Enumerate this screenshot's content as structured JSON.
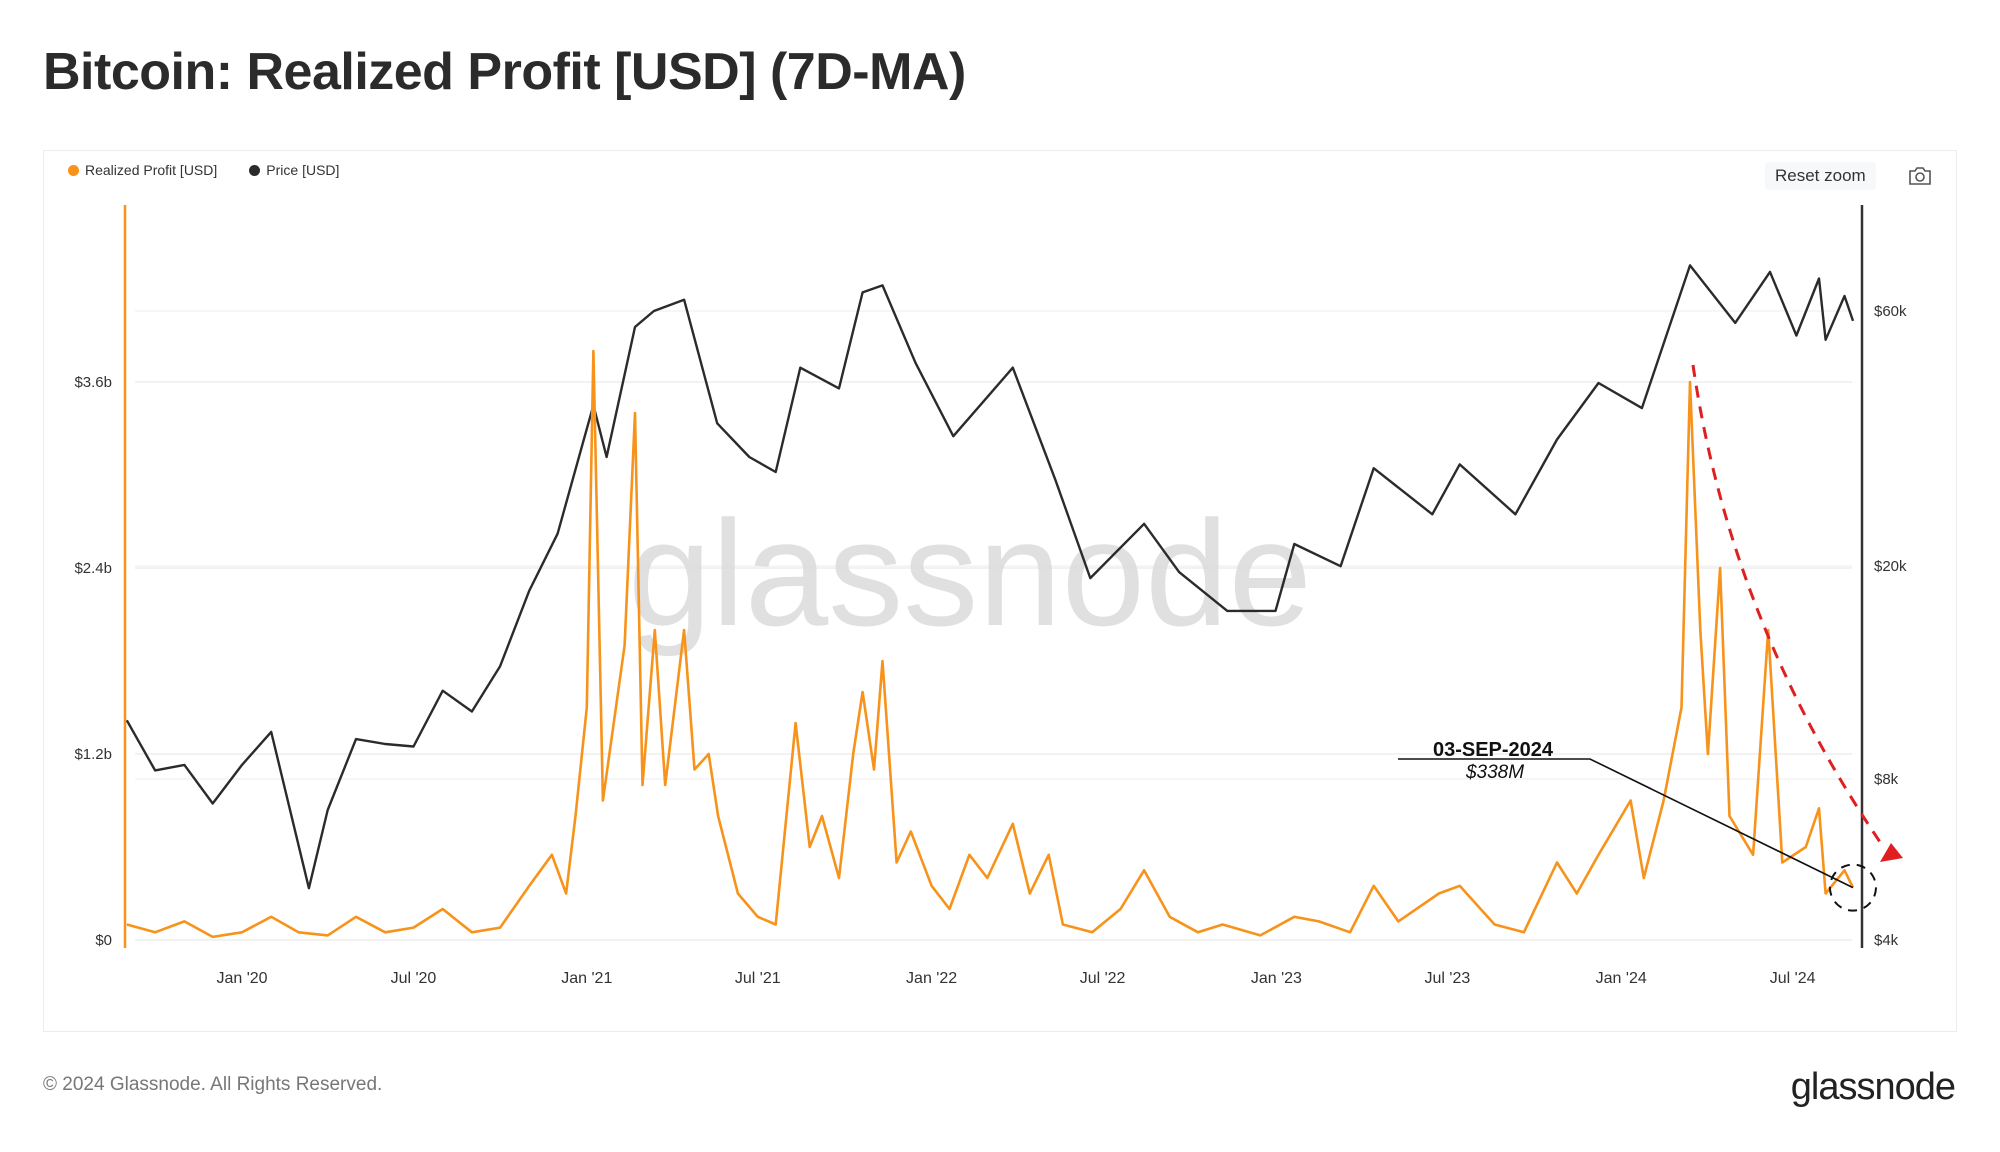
{
  "title": "Bitcoin: Realized Profit [USD] (7D-MA)",
  "legend": [
    {
      "label": "Realized Profit [USD]",
      "color": "#f7931a"
    },
    {
      "label": "Price [USD]",
      "color": "#2b2b2b"
    }
  ],
  "toolbar": {
    "reset_zoom": "Reset zoom",
    "camera_icon": "camera-icon"
  },
  "watermark": "glassnode",
  "footer": {
    "copyright": "© 2024 Glassnode. All Rights Reserved.",
    "logo": "glassnode"
  },
  "chart_data": {
    "type": "line",
    "title": "Bitcoin: Realized Profit [USD] (7D-MA)",
    "x_ticks": [
      "Jan '20",
      "Jul '20",
      "Jan '21",
      "Jul '21",
      "Jan '22",
      "Jul '22",
      "Jan '23",
      "Jul '23",
      "Jan '24",
      "Jul '24"
    ],
    "y_left": {
      "ticks": [
        "$0",
        "$1.2b",
        "$2.4b",
        "$3.6b"
      ],
      "range_billions": [
        0,
        4.8
      ],
      "scale": "linear"
    },
    "y_right": {
      "ticks": [
        "$4k",
        "$8k",
        "$20k",
        "$60k"
      ],
      "range": [
        4000,
        100000
      ],
      "scale": "log"
    },
    "grid": true,
    "legend_position": "top-left",
    "series": [
      {
        "name": "Realized Profit [USD]",
        "axis": "left",
        "unit": "billions USD",
        "color": "#f7931a",
        "points": [
          [
            "2019-09-01",
            0.1
          ],
          [
            "2019-10-01",
            0.05
          ],
          [
            "2019-11-01",
            0.12
          ],
          [
            "2019-12-01",
            0.02
          ],
          [
            "2020-01-01",
            0.05
          ],
          [
            "2020-02-01",
            0.15
          ],
          [
            "2020-03-01",
            0.05
          ],
          [
            "2020-04-01",
            0.03
          ],
          [
            "2020-05-01",
            0.15
          ],
          [
            "2020-06-01",
            0.05
          ],
          [
            "2020-07-01",
            0.08
          ],
          [
            "2020-08-01",
            0.2
          ],
          [
            "2020-09-01",
            0.05
          ],
          [
            "2020-10-01",
            0.08
          ],
          [
            "2020-11-01",
            0.35
          ],
          [
            "2020-11-25",
            0.55
          ],
          [
            "2020-12-10",
            0.3
          ],
          [
            "2020-12-20",
            0.8
          ],
          [
            "2021-01-01",
            1.5
          ],
          [
            "2021-01-08",
            3.8
          ],
          [
            "2021-01-18",
            0.9
          ],
          [
            "2021-02-10",
            1.9
          ],
          [
            "2021-02-21",
            3.4
          ],
          [
            "2021-03-01",
            1.0
          ],
          [
            "2021-03-14",
            2.0
          ],
          [
            "2021-03-25",
            1.0
          ],
          [
            "2021-04-14",
            2.0
          ],
          [
            "2021-04-25",
            1.1
          ],
          [
            "2021-05-10",
            1.2
          ],
          [
            "2021-05-20",
            0.8
          ],
          [
            "2021-06-10",
            0.3
          ],
          [
            "2021-07-01",
            0.15
          ],
          [
            "2021-07-20",
            0.1
          ],
          [
            "2021-08-10",
            1.4
          ],
          [
            "2021-08-25",
            0.6
          ],
          [
            "2021-09-07",
            0.8
          ],
          [
            "2021-09-25",
            0.4
          ],
          [
            "2021-10-10",
            1.2
          ],
          [
            "2021-10-20",
            1.6
          ],
          [
            "2021-11-01",
            1.1
          ],
          [
            "2021-11-10",
            1.8
          ],
          [
            "2021-11-25",
            0.5
          ],
          [
            "2021-12-10",
            0.7
          ],
          [
            "2022-01-01",
            0.35
          ],
          [
            "2022-01-20",
            0.2
          ],
          [
            "2022-02-10",
            0.55
          ],
          [
            "2022-03-01",
            0.4
          ],
          [
            "2022-03-28",
            0.75
          ],
          [
            "2022-04-15",
            0.3
          ],
          [
            "2022-05-05",
            0.55
          ],
          [
            "2022-05-20",
            0.1
          ],
          [
            "2022-06-20",
            0.05
          ],
          [
            "2022-07-20",
            0.2
          ],
          [
            "2022-08-14",
            0.45
          ],
          [
            "2022-09-10",
            0.15
          ],
          [
            "2022-10-10",
            0.05
          ],
          [
            "2022-11-05",
            0.1
          ],
          [
            "2022-12-15",
            0.03
          ],
          [
            "2023-01-20",
            0.15
          ],
          [
            "2023-02-15",
            0.12
          ],
          [
            "2023-03-20",
            0.05
          ],
          [
            "2023-04-14",
            0.35
          ],
          [
            "2023-05-10",
            0.12
          ],
          [
            "2023-06-22",
            0.3
          ],
          [
            "2023-07-14",
            0.35
          ],
          [
            "2023-08-20",
            0.1
          ],
          [
            "2023-09-20",
            0.05
          ],
          [
            "2023-10-25",
            0.5
          ],
          [
            "2023-11-15",
            0.3
          ],
          [
            "2023-12-08",
            0.55
          ],
          [
            "2024-01-11",
            0.9
          ],
          [
            "2024-01-25",
            0.4
          ],
          [
            "2024-02-15",
            0.9
          ],
          [
            "2024-03-05",
            1.5
          ],
          [
            "2024-03-14",
            3.6
          ],
          [
            "2024-03-25",
            2.0
          ],
          [
            "2024-04-02",
            1.2
          ],
          [
            "2024-04-15",
            2.4
          ],
          [
            "2024-04-25",
            0.8
          ],
          [
            "2024-05-20",
            0.55
          ],
          [
            "2024-06-05",
            2.0
          ],
          [
            "2024-06-20",
            0.5
          ],
          [
            "2024-07-15",
            0.6
          ],
          [
            "2024-07-29",
            0.85
          ],
          [
            "2024-08-05",
            0.3
          ],
          [
            "2024-08-25",
            0.45
          ],
          [
            "2024-09-03",
            0.338
          ]
        ]
      },
      {
        "name": "Price [USD]",
        "axis": "right",
        "unit": "USD",
        "color": "#2b2b2b",
        "points": [
          [
            "2019-09-01",
            10300
          ],
          [
            "2019-10-01",
            8300
          ],
          [
            "2019-11-01",
            8500
          ],
          [
            "2019-12-01",
            7200
          ],
          [
            "2020-01-01",
            8500
          ],
          [
            "2020-02-01",
            9800
          ],
          [
            "2020-03-12",
            5000
          ],
          [
            "2020-04-01",
            7000
          ],
          [
            "2020-05-01",
            9500
          ],
          [
            "2020-06-01",
            9300
          ],
          [
            "2020-07-01",
            9200
          ],
          [
            "2020-08-01",
            11700
          ],
          [
            "2020-09-01",
            10700
          ],
          [
            "2020-10-01",
            13000
          ],
          [
            "2020-11-01",
            18000
          ],
          [
            "2020-12-01",
            23000
          ],
          [
            "2021-01-08",
            40000
          ],
          [
            "2021-01-22",
            32000
          ],
          [
            "2021-02-21",
            56000
          ],
          [
            "2021-03-13",
            60000
          ],
          [
            "2021-04-14",
            63000
          ],
          [
            "2021-05-19",
            37000
          ],
          [
            "2021-06-22",
            32000
          ],
          [
            "2021-07-20",
            30000
          ],
          [
            "2021-08-15",
            47000
          ],
          [
            "2021-09-25",
            43000
          ],
          [
            "2021-10-20",
            65000
          ],
          [
            "2021-11-10",
            67000
          ],
          [
            "2021-12-15",
            48000
          ],
          [
            "2022-01-24",
            35000
          ],
          [
            "2022-03-28",
            47000
          ],
          [
            "2022-05-12",
            29000
          ],
          [
            "2022-06-18",
            19000
          ],
          [
            "2022-08-14",
            24000
          ],
          [
            "2022-09-20",
            19500
          ],
          [
            "2022-11-10",
            16500
          ],
          [
            "2022-12-31",
            16500
          ],
          [
            "2023-01-20",
            22000
          ],
          [
            "2023-03-10",
            20000
          ],
          [
            "2023-04-14",
            30500
          ],
          [
            "2023-06-15",
            25000
          ],
          [
            "2023-07-14",
            31000
          ],
          [
            "2023-09-11",
            25000
          ],
          [
            "2023-10-25",
            34500
          ],
          [
            "2023-12-08",
            44000
          ],
          [
            "2024-01-23",
            39500
          ],
          [
            "2024-03-14",
            73000
          ],
          [
            "2024-05-01",
            57000
          ],
          [
            "2024-06-07",
            71000
          ],
          [
            "2024-07-05",
            54000
          ],
          [
            "2024-07-29",
            69000
          ],
          [
            "2024-08-05",
            53000
          ],
          [
            "2024-08-25",
            64000
          ],
          [
            "2024-09-03",
            57500
          ]
        ]
      }
    ],
    "annotations": [
      {
        "date_label": "03-SEP-2024",
        "value_label": "$338M",
        "date": "2024-09-03",
        "value_billions": 0.338
      },
      {
        "type": "trend-arrow",
        "color": "#e02020",
        "style": "dashed"
      }
    ]
  }
}
